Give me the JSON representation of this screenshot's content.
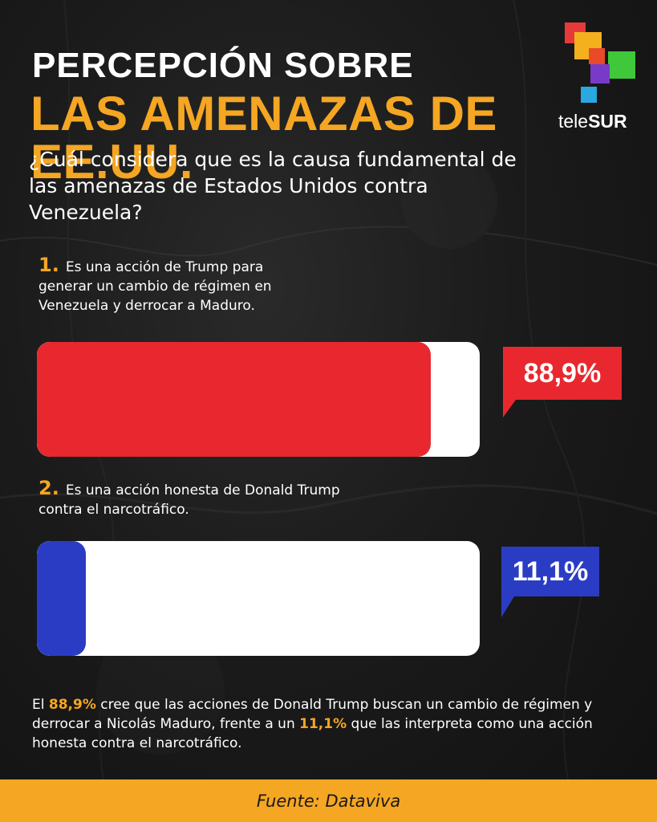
{
  "header": {
    "title_line1": "PERCEPCIÓN SOBRE",
    "title_line2": "LAS AMENAZAS DE EE.UU."
  },
  "logo": {
    "text_light": "tele",
    "text_bold": "SUR"
  },
  "question": "¿Cuál considera que es la causa fundamental de las amenazas de Estados Unidos contra Venezuela?",
  "options": [
    {
      "number": "1.",
      "text": "Es una acción de Trump para generar un cambio de régimen en Venezuela y derrocar a Maduro.",
      "value_label": "88,9%"
    },
    {
      "number": "2.",
      "text": "Es una acción honesta de Donald Trump contra el narcotráfico.",
      "value_label": "11,1%"
    }
  ],
  "summary": {
    "part1": "El ",
    "value1": "88,9%",
    "part2": " cree que las acciones de Donald Trump buscan un cambio de régimen y derrocar a Nicolás Maduro, frente a un ",
    "value2": "11,1%",
    "part3": " que las interpreta como una acción honesta contra el narcotráfico."
  },
  "footer": {
    "source": "Fuente: Dataviva"
  },
  "colors": {
    "accent": "#f5a623",
    "red": "#e8282e",
    "blue": "#2b3cc4",
    "white": "#ffffff"
  },
  "chart_data": {
    "type": "bar",
    "categories": [
      "Es una acción de Trump para generar un cambio de régimen en Venezuela y derrocar a Maduro.",
      "Es una acción honesta de Donald Trump contra el narcotráfico."
    ],
    "values": [
      88.9,
      11.1
    ],
    "value_labels": [
      "88,9%",
      "11,1%"
    ],
    "colors": [
      "#e8282e",
      "#2b3cc4"
    ],
    "ylim": [
      0,
      100
    ]
  }
}
